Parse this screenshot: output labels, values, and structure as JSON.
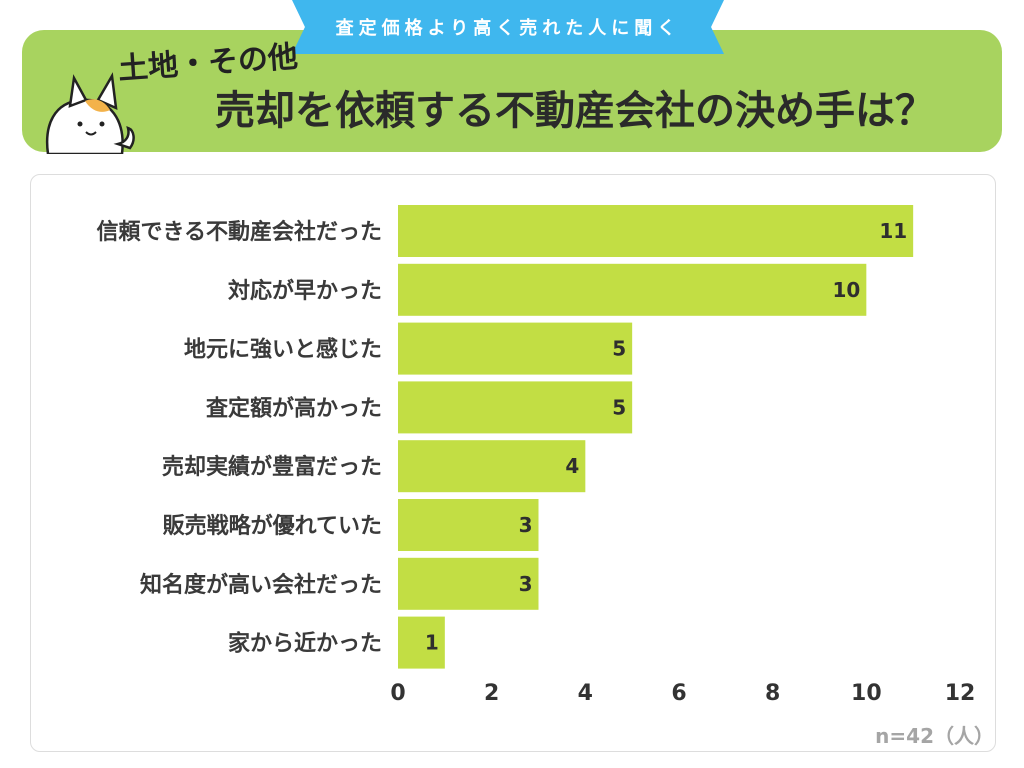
{
  "header": {
    "tag": "査定価格より高く売れた人に聞く",
    "subtitle": "土地・その他",
    "title": "売却を依頼する不動産会社の決め手は？"
  },
  "note": "n=42（人）",
  "colors": {
    "bar": "#c2de44",
    "banner": "#a8d35f",
    "tag": "#3fb7ee"
  },
  "chart_data": {
    "type": "bar",
    "orientation": "horizontal",
    "categories": [
      "信頼できる不動産会社だった",
      "対応が早かった",
      "地元に強いと感じた",
      "査定額が高かった",
      "売却実績が豊富だった",
      "販売戦略が優れていた",
      "知名度が高い会社だった",
      "家から近かった"
    ],
    "values": [
      11,
      10,
      5,
      5,
      4,
      3,
      3,
      1
    ],
    "xlim": [
      0,
      12
    ],
    "xticks": [
      0,
      2,
      4,
      6,
      8,
      10,
      12
    ],
    "grid": false,
    "legend": "none"
  }
}
